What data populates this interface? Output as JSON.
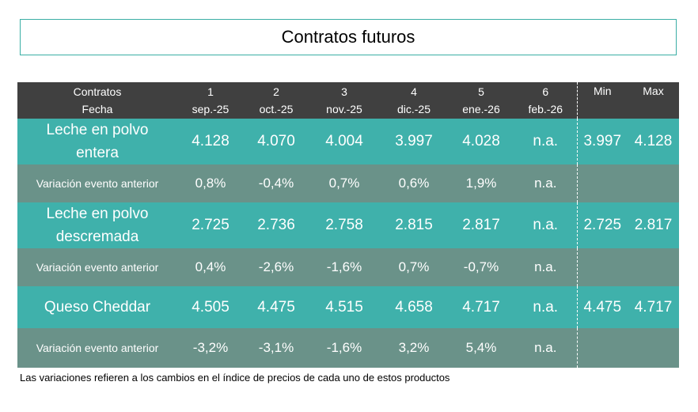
{
  "title": "Contratos futuros",
  "header": {
    "label_line1": "Contratos",
    "label_line2": "Fecha",
    "columns": [
      {
        "num": "1",
        "date": "sep.-25"
      },
      {
        "num": "2",
        "date": "oct.-25"
      },
      {
        "num": "3",
        "date": "nov.-25"
      },
      {
        "num": "4",
        "date": "dic.-25"
      },
      {
        "num": "5",
        "date": "ene.-26"
      },
      {
        "num": "6",
        "date": "feb.-26"
      }
    ],
    "min_label": "Min",
    "max_label": "Max"
  },
  "products": [
    {
      "name_line1": "Leche en polvo",
      "name_line2": "entera",
      "values": [
        "4.128",
        "4.070",
        "4.004",
        "3.997",
        "4.028",
        "n.a."
      ],
      "min": "3.997",
      "max": "4.128",
      "variation_label": "Variación evento anterior",
      "variations": [
        "0,8%",
        "-0,4%",
        "0,7%",
        "0,6%",
        "1,9%",
        "n.a."
      ]
    },
    {
      "name_line1": "Leche en polvo",
      "name_line2": "descremada",
      "values": [
        "2.725",
        "2.736",
        "2.758",
        "2.815",
        "2.817",
        "n.a."
      ],
      "min": "2.725",
      "max": "2.817",
      "variation_label": "Variación evento anterior",
      "variations": [
        "0,4%",
        "-2,6%",
        "-1,6%",
        "0,7%",
        "-0,7%",
        "n.a."
      ]
    },
    {
      "name_line1": "Queso Cheddar",
      "name_line2": "",
      "values": [
        "4.505",
        "4.475",
        "4.515",
        "4.658",
        "4.717",
        "n.a."
      ],
      "min": "4.475",
      "max": "4.717",
      "variation_label": "Variación evento anterior",
      "variations": [
        "-3,2%",
        "-3,1%",
        "-1,6%",
        "3,2%",
        "5,4%",
        "n.a."
      ]
    }
  ],
  "footnote": "Las variaciones refieren a los cambios en el índice de precios de cada uno de estos productos",
  "colors": {
    "header_bg": "#404040",
    "product_row_bg": "#3fb1ab",
    "variation_row_bg": "#6a9289",
    "title_border": "#3aaea5"
  }
}
